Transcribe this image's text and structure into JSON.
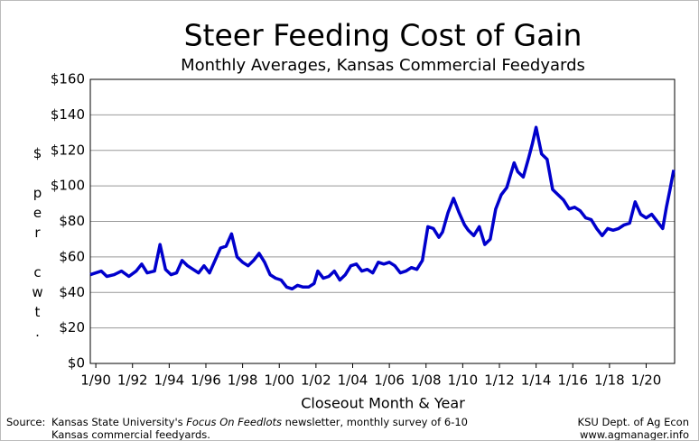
{
  "chart_data": {
    "type": "line",
    "title": "Steer Feeding Cost of Gain",
    "subtitle": "Monthly Averages, Kansas Commercial Feedyards",
    "x_label": "Closeout Month & Year",
    "y_label": "$ per cwt.",
    "x": [
      1989.7,
      1990.3,
      1990.6,
      1991.0,
      1991.4,
      1991.8,
      1992.2,
      1992.5,
      1992.8,
      1993.2,
      1993.5,
      1993.8,
      1994.1,
      1994.4,
      1994.7,
      1995.0,
      1995.3,
      1995.6,
      1995.9,
      1996.2,
      1996.5,
      1996.8,
      1997.1,
      1997.4,
      1997.7,
      1998.0,
      1998.3,
      1998.6,
      1998.9,
      1999.2,
      1999.5,
      1999.8,
      2000.1,
      2000.4,
      2000.7,
      2001.0,
      2001.3,
      2001.6,
      2001.9,
      2002.1,
      2002.4,
      2002.7,
      2003.0,
      2003.3,
      2003.6,
      2003.9,
      2004.2,
      2004.5,
      2004.8,
      2005.1,
      2005.4,
      2005.7,
      2006.0,
      2006.3,
      2006.6,
      2006.9,
      2007.2,
      2007.5,
      2007.8,
      2008.1,
      2008.4,
      2008.7,
      2008.9,
      2009.2,
      2009.5,
      2009.8,
      2010.1,
      2010.3,
      2010.6,
      2010.9,
      2011.2,
      2011.5,
      2011.8,
      2012.1,
      2012.4,
      2012.6,
      2012.8,
      2013.0,
      2013.3,
      2013.6,
      2013.8,
      2014.0,
      2014.3,
      2014.6,
      2014.9,
      2015.2,
      2015.5,
      2015.8,
      2016.1,
      2016.4,
      2016.7,
      2017.0,
      2017.3,
      2017.6,
      2017.9,
      2018.2,
      2018.5,
      2018.8,
      2019.1,
      2019.4,
      2019.7,
      2020.0,
      2020.3,
      2020.6,
      2020.9,
      2021.1,
      2021.3,
      2021.5
    ],
    "series": [
      {
        "name": "Cost of Gain",
        "color": "#0000cc",
        "values": [
          50,
          52,
          49,
          50,
          52,
          49,
          52,
          56,
          51,
          52,
          67,
          53,
          50,
          51,
          58,
          55,
          53,
          51,
          55,
          51,
          58,
          65,
          66,
          73,
          60,
          57,
          55,
          58,
          62,
          57,
          50,
          48,
          47,
          43,
          42,
          44,
          43,
          43,
          45,
          52,
          48,
          49,
          52,
          47,
          50,
          55,
          56,
          52,
          53,
          51,
          57,
          56,
          57,
          55,
          51,
          52,
          54,
          53,
          58,
          77,
          76,
          71,
          74,
          85,
          93,
          85,
          78,
          75,
          72,
          77,
          67,
          70,
          87,
          95,
          99,
          106,
          113,
          108,
          105,
          116,
          124,
          133,
          118,
          115,
          98,
          95,
          92,
          87,
          88,
          86,
          82,
          81,
          76,
          72,
          76,
          75,
          76,
          78,
          79,
          91,
          84,
          82,
          84,
          80,
          76,
          88,
          98,
          109
        ]
      }
    ],
    "xlim": [
      1989.7,
      2021.55
    ],
    "xticks": [
      {
        "value": 1990,
        "label": "1/90"
      },
      {
        "value": 1992,
        "label": "1/92"
      },
      {
        "value": 1994,
        "label": "1/94"
      },
      {
        "value": 1996,
        "label": "1/96"
      },
      {
        "value": 1998,
        "label": "1/98"
      },
      {
        "value": 2000,
        "label": "1/00"
      },
      {
        "value": 2002,
        "label": "1/02"
      },
      {
        "value": 2004,
        "label": "1/04"
      },
      {
        "value": 2006,
        "label": "1/06"
      },
      {
        "value": 2008,
        "label": "1/08"
      },
      {
        "value": 2010,
        "label": "1/10"
      },
      {
        "value": 2012,
        "label": "1/12"
      },
      {
        "value": 2014,
        "label": "1/14"
      },
      {
        "value": 2016,
        "label": "1/16"
      },
      {
        "value": 2018,
        "label": "1/18"
      },
      {
        "value": 2020,
        "label": "1/20"
      }
    ],
    "ylim": [
      0,
      160
    ],
    "yticks": [
      {
        "value": 0,
        "label": "$0"
      },
      {
        "value": 20,
        "label": "$20"
      },
      {
        "value": 40,
        "label": "$40"
      },
      {
        "value": 60,
        "label": "$60"
      },
      {
        "value": 80,
        "label": "$80"
      },
      {
        "value": 100,
        "label": "$100"
      },
      {
        "value": 120,
        "label": "$120"
      },
      {
        "value": 140,
        "label": "$140"
      },
      {
        "value": 160,
        "label": "$160"
      }
    ],
    "grid": true
  },
  "source": {
    "label": "Source:",
    "text_before": "Kansas State University's",
    "italic": "Focus On Feedlots",
    "text_after": "newsletter, monthly survey of 6-10 Kansas commercial feedyards."
  },
  "credit": {
    "line1": "KSU Dept. of Ag Econ",
    "line2": "www.agmanager.info"
  }
}
